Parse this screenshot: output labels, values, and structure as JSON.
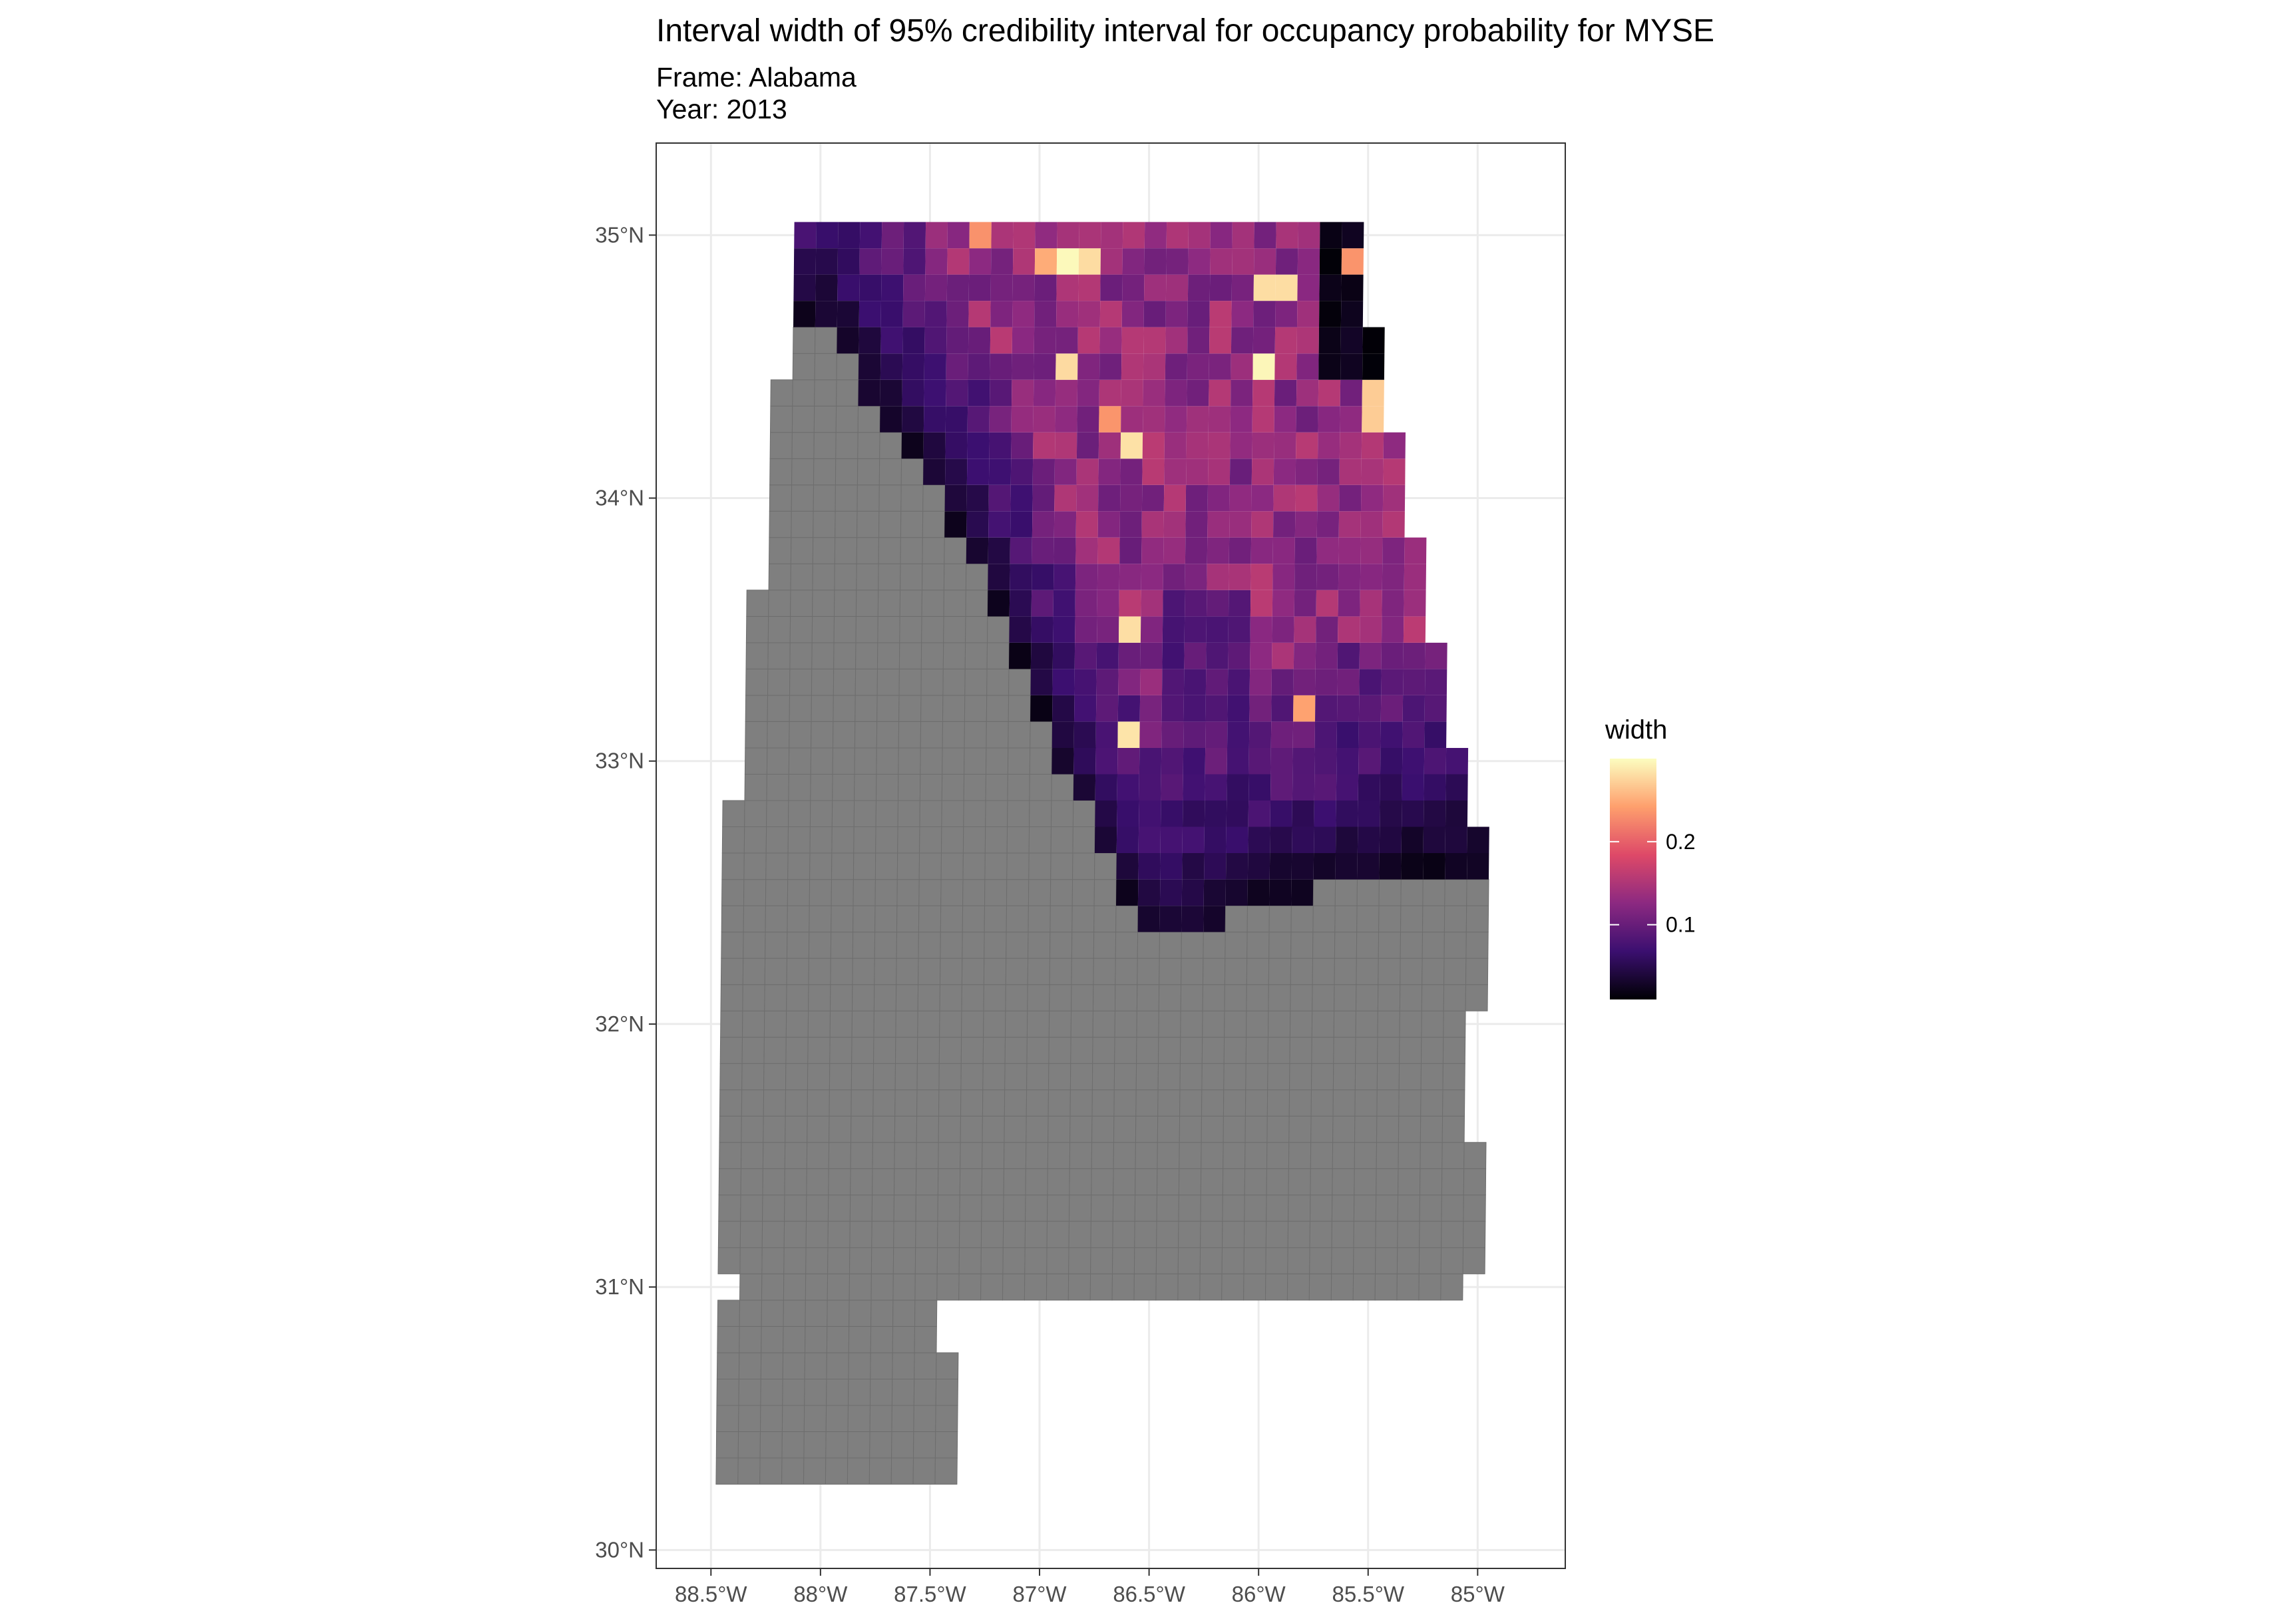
{
  "chart_data": {
    "type": "heatmap",
    "title": "Interval width of 95% credibility interval for occupancy probability for MYSE",
    "subtitle_lines": [
      "Frame: Alabama",
      "Year: 2013"
    ],
    "xlabel": "",
    "ylabel": "",
    "x_ticks": [
      {
        "value": -88.5,
        "label": "88.5°W"
      },
      {
        "value": -88.0,
        "label": "88°W"
      },
      {
        "value": -87.5,
        "label": "87.5°W"
      },
      {
        "value": -87.0,
        "label": "87°W"
      },
      {
        "value": -86.5,
        "label": "86.5°W"
      },
      {
        "value": -86.0,
        "label": "86°W"
      },
      {
        "value": -85.5,
        "label": "85.5°W"
      },
      {
        "value": -85.0,
        "label": "85°W"
      }
    ],
    "y_ticks": [
      {
        "value": 30,
        "label": "30°N"
      },
      {
        "value": 31,
        "label": "31°N"
      },
      {
        "value": 32,
        "label": "32°N"
      },
      {
        "value": 33,
        "label": "33°N"
      },
      {
        "value": 34,
        "label": "34°N"
      },
      {
        "value": 35,
        "label": "35°N"
      }
    ],
    "xlim": [
      -88.75,
      -84.6
    ],
    "ylim": [
      29.93,
      35.35
    ],
    "grid": true,
    "legend": {
      "title": "width",
      "position": "right",
      "range": [
        0.01,
        0.3
      ],
      "ticks": [
        {
          "value": 0.1,
          "label": "0.1"
        },
        {
          "value": 0.2,
          "label": "0.2"
        }
      ],
      "colormap": [
        "#000004",
        "#3b0f70",
        "#8c2981",
        "#de4968",
        "#fe9f6d",
        "#fcfdbf"
      ]
    },
    "no_data_color": "#7f7f7f",
    "panel_border_color": "#333333",
    "grid_color": "#ebebeb",
    "note": "cell widths are approximate per-cell readings of the color scale; cells are laid out on a ~0.1-degree grid"
  }
}
